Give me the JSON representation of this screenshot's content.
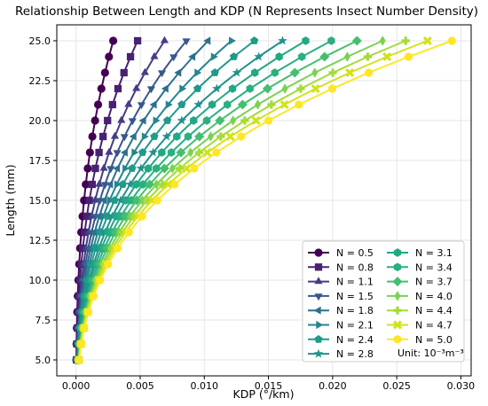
{
  "chart_data": {
    "type": "line",
    "title": "Relationship Between Length and KDP (N Represents Insect Number Density)",
    "xlabel": "KDP (°/km)",
    "ylabel": "Length (mm)",
    "xlim": [
      -0.0015,
      0.0308
    ],
    "ylim": [
      4.0,
      26.0
    ],
    "xticks": [
      "0.000",
      "0.005",
      "0.010",
      "0.015",
      "0.020",
      "0.025",
      "0.030"
    ],
    "yticks": [
      "5.0",
      "7.5",
      "10.0",
      "12.5",
      "15.0",
      "17.5",
      "20.0",
      "22.5",
      "25.0"
    ],
    "grid": true,
    "legend_position": "bottom-right",
    "legend_note": "Unit: 10⁻³m⁻³",
    "length_mm": [
      5,
      6,
      7,
      8,
      9,
      10,
      11,
      12,
      13,
      14,
      15,
      16,
      17,
      18,
      19,
      20,
      21,
      22,
      23,
      24,
      25
    ],
    "kdp_max_at_25mm": [
      0.0029,
      0.0048,
      0.0069,
      0.0086,
      0.0103,
      0.0121,
      0.0139,
      0.0161,
      0.0179,
      0.0199,
      0.0219,
      0.0239,
      0.0257,
      0.0274,
      0.0293
    ],
    "series": [
      {
        "name": "N = 0.5",
        "color": "#440154",
        "marker": "circle"
      },
      {
        "name": "N = 0.8",
        "color": "#482173",
        "marker": "square"
      },
      {
        "name": "N = 1.1",
        "color": "#433e85",
        "marker": "triangle-up"
      },
      {
        "name": "N = 1.5",
        "color": "#38588c",
        "marker": "triangle-down"
      },
      {
        "name": "N = 1.8",
        "color": "#2d708e",
        "marker": "triangle-left"
      },
      {
        "name": "N = 2.1",
        "color": "#25858e",
        "marker": "triangle-right"
      },
      {
        "name": "N = 2.4",
        "color": "#1e9b8a",
        "marker": "pentagon"
      },
      {
        "name": "N = 2.8",
        "color": "#21918c",
        "marker": "star"
      },
      {
        "name": "N = 3.1",
        "color": "#22a884",
        "marker": "hexagon"
      },
      {
        "name": "N = 3.4",
        "color": "#2ab07f",
        "marker": "hexagon"
      },
      {
        "name": "N = 3.7",
        "color": "#44bf70",
        "marker": "diamond"
      },
      {
        "name": "N = 4.0",
        "color": "#7ad151",
        "marker": "thin-diamond"
      },
      {
        "name": "N = 4.4",
        "color": "#a5db36",
        "marker": "plus"
      },
      {
        "name": "N = 4.7",
        "color": "#d2e21b",
        "marker": "x"
      },
      {
        "name": "N = 5.0",
        "color": "#fde725",
        "marker": "circle"
      }
    ]
  }
}
